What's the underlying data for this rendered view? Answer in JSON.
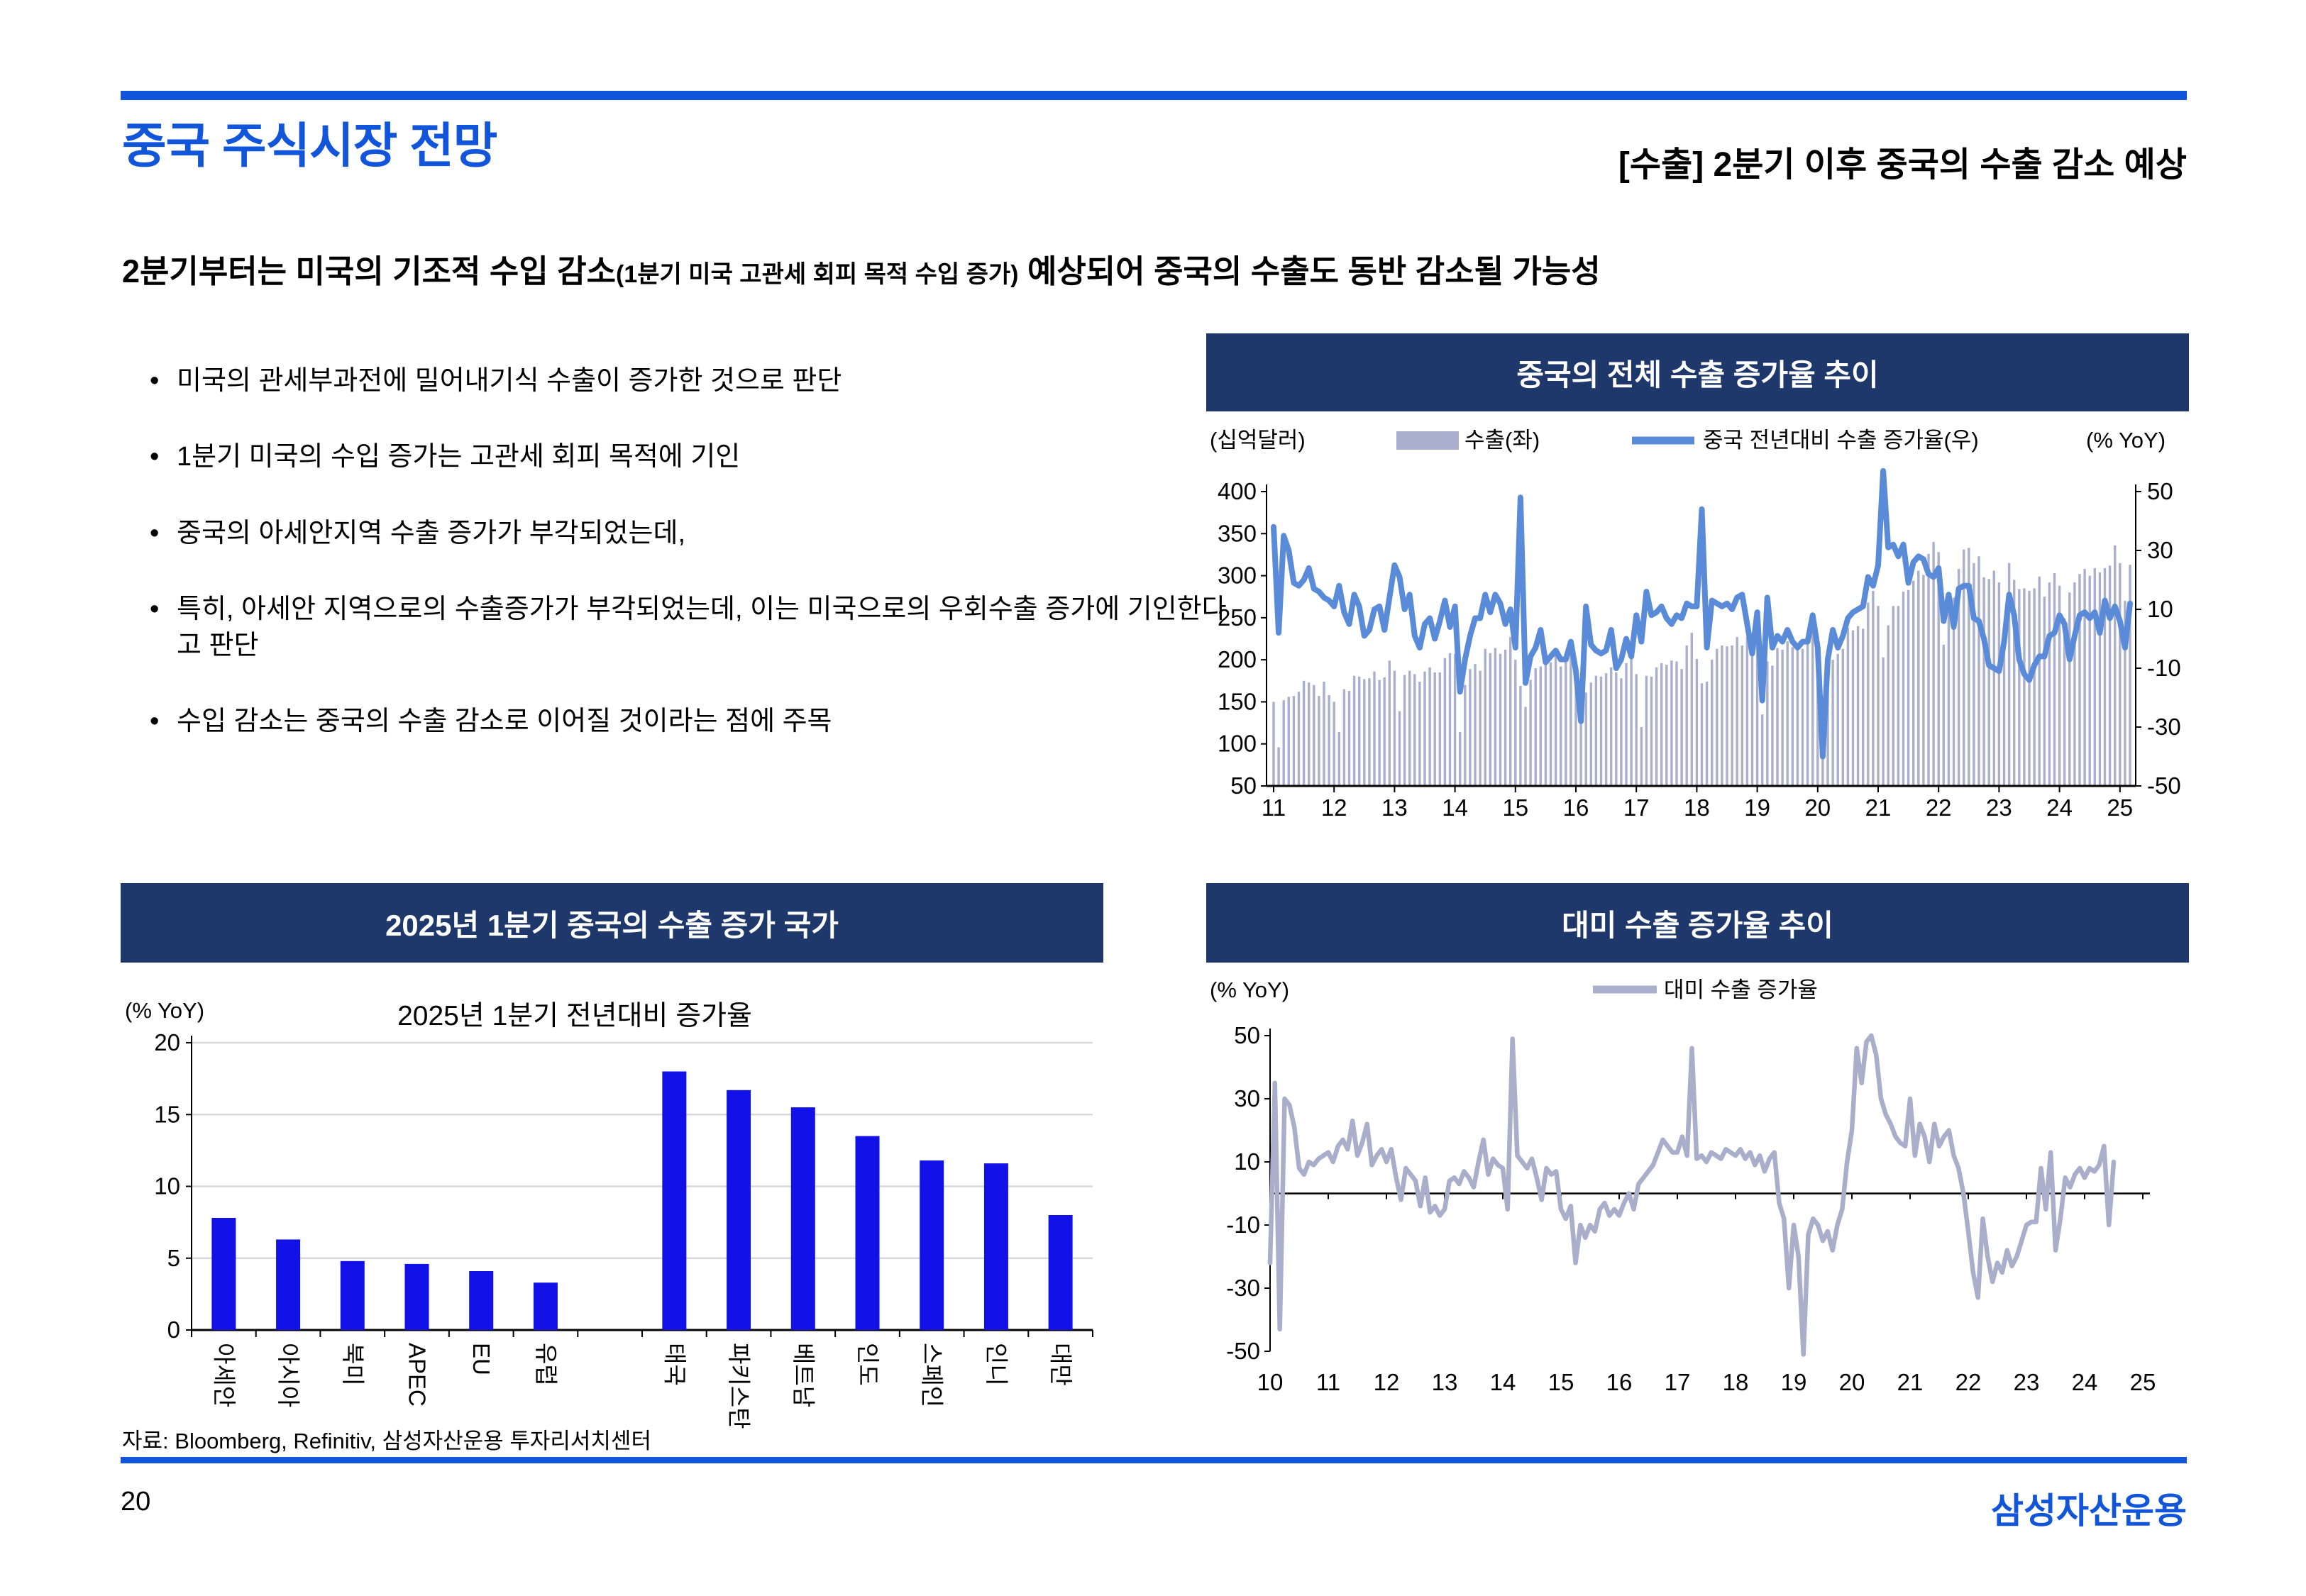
{
  "page": {
    "title": "중국 주식시장 전망",
    "header_right": "[수출] 2분기 이후 중국의 수출 감소 예상",
    "subtitle_main": "2분기부터는 미국의 기조적 수입 감소",
    "subtitle_paren": "(1분기 미국 고관세 회피 목적 수입 증가)",
    "subtitle_tail": " 예상되어 중국의 수출도 동반 감소될 가능성",
    "source": "자료: Bloomberg, Refinitiv, 삼성자산운용 투자리서치센터",
    "page_number": "20",
    "logo": "삼성자산운용"
  },
  "bullets": [
    "미국의 관세부과전에 밀어내기식 수출이 증가한 것으로 판단",
    "1분기 미국의 수입 증가는 고관세 회피 목적에 기인",
    "중국의 아세안지역 수출 증가가 부각되었는데,",
    "특히, 아세안 지역으로의 수출증가가 부각되었는데, 이는 미국으로의 우회수출 증가에 기인한다고 판단",
    "수입 감소는 중국의 수출 감소로 이어질 것이라는 점에 주목"
  ],
  "colors": {
    "accent": "#1155DB",
    "navy": "#1F386B",
    "grid": "#D9D9D9",
    "axis": "#000000"
  },
  "chart_data": [
    {
      "id": "china-total-export-growth",
      "type": "bar+line",
      "header": "중국의 전체 수출 증가율 추이",
      "left_axis_label": "(십억달러)",
      "right_axis_label": "(% YoY)",
      "legend": [
        {
          "label": "수출(좌)",
          "type": "bar",
          "color": "#A9AFCC"
        },
        {
          "label": "중국 전년대비 수출 증가율(우)",
          "type": "line",
          "color": "#5A8BD8"
        }
      ],
      "left_axis": {
        "min": 50,
        "max": 400,
        "ticks": [
          400,
          350,
          300,
          250,
          200,
          150,
          100,
          50
        ]
      },
      "right_axis": {
        "min": -50,
        "max": 50,
        "ticks": [
          50,
          30,
          10,
          -10,
          -30,
          -50
        ]
      },
      "x_start_year": 2011,
      "x_ticks": [
        "11",
        "12",
        "13",
        "14",
        "15",
        "16",
        "17",
        "18",
        "19",
        "20",
        "21",
        "22",
        "23",
        "24",
        "25"
      ],
      "bars_monthly": [
        150,
        96,
        152,
        156,
        157,
        162,
        175,
        173,
        170,
        157,
        174,
        158,
        150,
        114,
        165,
        163,
        181,
        180,
        177,
        178,
        186,
        176,
        179,
        199,
        187,
        139,
        182,
        187,
        183,
        174,
        186,
        191,
        185,
        185,
        202,
        208,
        207,
        114,
        170,
        189,
        195,
        187,
        213,
        208,
        214,
        207,
        212,
        227,
        200,
        169,
        144,
        176,
        190,
        192,
        195,
        197,
        205,
        192,
        197,
        224,
        177,
        126,
        161,
        173,
        181,
        180,
        184,
        191,
        185,
        178,
        196,
        210,
        183,
        120,
        181,
        180,
        191,
        196,
        194,
        199,
        198,
        189,
        217,
        232,
        201,
        172,
        174,
        200,
        213,
        217,
        216,
        217,
        227,
        217,
        227,
        221,
        218,
        135,
        198,
        193,
        214,
        212,
        222,
        215,
        218,
        213,
        222,
        238,
        200,
        124,
        185,
        200,
        207,
        213,
        238,
        235,
        240,
        237,
        268,
        282,
        264,
        203,
        241,
        264,
        264,
        281,
        283,
        294,
        306,
        301,
        326,
        340,
        328,
        218,
        276,
        274,
        308,
        331,
        333,
        315,
        323,
        298,
        296,
        306,
        292,
        214,
        315,
        295,
        284,
        285,
        282,
        285,
        299,
        275,
        292,
        303,
        288,
        249,
        280,
        292,
        302,
        308,
        300,
        309,
        304,
        309,
        312,
        336,
        315,
        270,
        313
      ],
      "line_monthly": [
        38,
        2,
        35,
        30,
        19,
        18,
        20,
        24,
        17,
        16,
        14,
        13,
        11,
        18,
        9,
        5,
        15,
        11,
        1,
        3,
        10,
        11,
        3,
        14,
        25,
        21,
        10,
        15,
        1,
        -3,
        5,
        7,
        0,
        6,
        13,
        4,
        11,
        -18,
        -7,
        1,
        7,
        7,
        15,
        9,
        15,
        12,
        5,
        10,
        -3,
        48,
        -15,
        -6,
        -3,
        3,
        -8,
        -6,
        -4,
        -7,
        -7,
        -1,
        -11,
        -28,
        11,
        -2,
        -4,
        -5,
        -4,
        3,
        -10,
        -7,
        0,
        -6,
        8,
        -1,
        16,
        8,
        9,
        11,
        7,
        5,
        8,
        7,
        12,
        11,
        11,
        44,
        -3,
        13,
        12,
        11,
        12,
        10,
        14,
        15,
        5,
        -5,
        9,
        -21,
        14,
        -3,
        1,
        -1,
        3,
        -1,
        -3,
        -1,
        -1,
        8,
        -3,
        -40,
        -7,
        3,
        -3,
        1,
        7,
        9,
        10,
        11,
        21,
        18,
        25,
        60,
        31,
        32,
        28,
        32,
        19,
        26,
        28,
        27,
        22,
        21,
        24,
        6,
        15,
        4,
        17,
        18,
        18,
        7,
        6,
        0,
        -9,
        -10,
        -11,
        -1,
        15,
        8,
        -7,
        -12,
        -14,
        -9,
        -6,
        -6,
        1,
        2,
        8,
        5,
        -7,
        1,
        8,
        9,
        7,
        9,
        2,
        13,
        7,
        11,
        6,
        -3,
        12
      ]
    },
    {
      "id": "q1-2025-export-growth-countries",
      "type": "bar",
      "header": "2025년 1분기 중국의 수출 증가 국가",
      "title": "2025년 1분기 전년대비 증가율",
      "ylabel": "(% YoY)",
      "ylim": [
        0,
        20
      ],
      "yticks": [
        0,
        5,
        10,
        15,
        20
      ],
      "bar_color": "#1111E8",
      "categories": [
        "아세안",
        "아시아",
        "북미",
        "APEC",
        "EU",
        "유럽",
        "",
        "태국",
        "파키스탄",
        "베트남",
        "인도",
        "스페인",
        "인니",
        "대만"
      ],
      "values": [
        7.8,
        6.3,
        4.8,
        4.6,
        4.1,
        3.3,
        null,
        18.0,
        16.7,
        15.5,
        13.5,
        11.8,
        11.6,
        8.0
      ]
    },
    {
      "id": "exports-to-us-growth",
      "type": "line",
      "header": "대미 수출 증가율 추이",
      "legend": "대미 수출 증가율",
      "ylabel": "(% YoY)",
      "ylim": [
        -50,
        50
      ],
      "yticks": [
        50,
        30,
        10,
        -10,
        -30,
        -50
      ],
      "line_color": "#A9AECB",
      "x_start_year": 2010,
      "x_ticks": [
        "10",
        "11",
        "12",
        "13",
        "14",
        "15",
        "16",
        "17",
        "18",
        "19",
        "20",
        "21",
        "22",
        "23",
        "24",
        "25"
      ],
      "line_monthly": [
        -22,
        35,
        -43,
        30,
        28,
        21,
        8,
        6,
        10,
        9,
        11,
        12,
        13,
        10,
        15,
        17,
        14,
        23,
        12,
        16,
        22,
        9,
        12,
        14,
        10,
        14,
        5,
        -2,
        8,
        6,
        4,
        -4,
        5,
        -6,
        -4,
        -7,
        -5,
        4,
        5,
        3,
        7,
        5,
        2,
        10,
        17,
        6,
        11,
        9,
        8,
        -5,
        49,
        12,
        10,
        8,
        11,
        5,
        -2,
        8,
        6,
        7,
        -5,
        -8,
        -4,
        -22,
        -10,
        -14,
        -10,
        -12,
        -5,
        -3,
        -7,
        -5,
        -7,
        -3,
        0,
        -5,
        3,
        5,
        7,
        9,
        13,
        17,
        15,
        13,
        13,
        18,
        12,
        46,
        11,
        12,
        10,
        13,
        12,
        11,
        14,
        13,
        12,
        14,
        11,
        13,
        9,
        12,
        7,
        11,
        13,
        -3,
        -8,
        -30,
        -10,
        -20,
        -51,
        -13,
        -8,
        -10,
        -15,
        -12,
        -18,
        -10,
        -5,
        10,
        20,
        46,
        35,
        48,
        50,
        44,
        30,
        25,
        22,
        18,
        16,
        15,
        30,
        12,
        22,
        18,
        10,
        22,
        15,
        18,
        20,
        12,
        8,
        0,
        -12,
        -25,
        -33,
        -8,
        -20,
        -28,
        -22,
        -25,
        -18,
        -23,
        -20,
        -15,
        -10,
        -9,
        -9,
        8,
        -5,
        13,
        -18,
        -8,
        5,
        2,
        6,
        8,
        5,
        8,
        7,
        9,
        15,
        -10,
        10
      ]
    }
  ]
}
